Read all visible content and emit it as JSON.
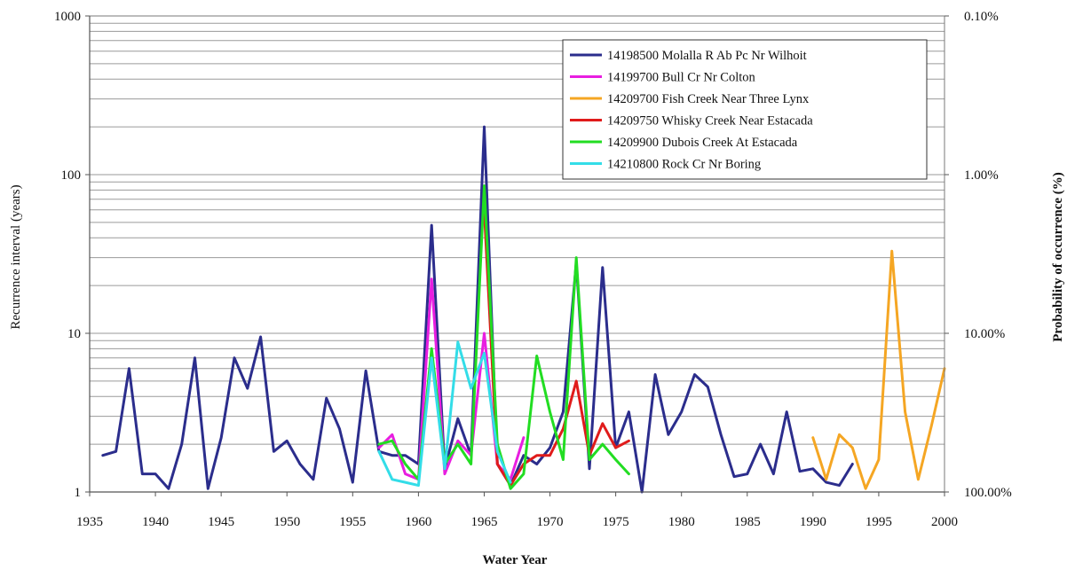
{
  "chart_data": {
    "type": "line",
    "xlabel": "Water Year",
    "ylabel": "Recurrence interval (years)",
    "ylabel_right": "Probability of occurrence (%)",
    "xlim": [
      1935,
      2000
    ],
    "ylim": [
      1,
      1000
    ],
    "yscale": "log",
    "x_ticks": [
      "1935",
      "1940",
      "1945",
      "1950",
      "1955",
      "1960",
      "1965",
      "1970",
      "1975",
      "1980",
      "1985",
      "1990",
      "1995",
      "2000"
    ],
    "y_ticks": [
      "1",
      "10",
      "100",
      "1000"
    ],
    "y2_ticks": [
      "100.00%",
      "10.00%",
      "1.00%",
      "0.10%"
    ],
    "grid": "horizontal log gridlines",
    "legend_position": "top-right",
    "series": [
      {
        "name": "14198500 Molalla R Ab Pc Nr Wilhoit",
        "color": "#2b2d8c",
        "x": [
          1936,
          1937,
          1938,
          1939,
          1940,
          1941,
          1942,
          1943,
          1944,
          1945,
          1946,
          1947,
          1948,
          1949,
          1950,
          1951,
          1952,
          1953,
          1954,
          1955,
          1956,
          1957,
          1958,
          1959,
          1960,
          1961,
          1962,
          1963,
          1964,
          1965,
          1966,
          1967,
          1968,
          1969,
          1970,
          1971,
          1972,
          1973,
          1974,
          1975,
          1976,
          1977,
          1978,
          1979,
          1980,
          1981,
          1982,
          1983,
          1984,
          1985,
          1986,
          1987,
          1988,
          1989,
          1990,
          1991,
          1992,
          1993
        ],
        "y": [
          1.7,
          1.8,
          6,
          1.3,
          1.3,
          1.05,
          2,
          7,
          1.05,
          2.2,
          7,
          4.5,
          9.5,
          1.8,
          2.1,
          1.5,
          1.2,
          3.9,
          2.5,
          1.15,
          5.8,
          1.8,
          1.7,
          1.7,
          1.5,
          48,
          1.4,
          2.9,
          1.7,
          200,
          1.5,
          1.1,
          1.7,
          1.5,
          1.9,
          3.2,
          28,
          1.4,
          26,
          1.9,
          3.2,
          1.0,
          5.5,
          2.3,
          3.2,
          5.5,
          4.6,
          2.3,
          1.25,
          1.3,
          2,
          1.3,
          3.2,
          1.35,
          1.4,
          1.15,
          1.1,
          1.5
        ]
      },
      {
        "name": "14199700 Bull Cr Nr Colton",
        "color": "#e81ee0",
        "x": [
          1957,
          1958,
          1959,
          1960,
          1961,
          1962,
          1963,
          1964,
          1965,
          1966,
          1967,
          1968
        ],
        "y": [
          1.9,
          2.3,
          1.3,
          1.2,
          22,
          1.3,
          2.1,
          1.7,
          10,
          1.5,
          1.2,
          2.2
        ]
      },
      {
        "name": "14209700 Fish Creek Near Three Lynx",
        "color": "#f5a623",
        "x": [
          1990,
          1991,
          1992,
          1993,
          1994,
          1995,
          1996,
          1997,
          1998,
          1999,
          2000
        ],
        "y": [
          2.2,
          1.2,
          2.3,
          1.9,
          1.05,
          1.6,
          33,
          3.2,
          1.2,
          2.6,
          6
        ]
      },
      {
        "name": "14209750 Whisky Creek Near Estacada",
        "color": "#e01b1b",
        "x": [
          1965,
          1966,
          1967,
          1968,
          1969,
          1970,
          1971,
          1972,
          1973,
          1974,
          1975,
          1976
        ],
        "y": [
          60,
          1.5,
          1.1,
          1.5,
          1.7,
          1.7,
          2.5,
          5,
          1.7,
          2.7,
          1.9,
          2.1
        ]
      },
      {
        "name": "14209900 Dubois Creek At Estacada",
        "color": "#22dd22",
        "x": [
          1957,
          1958,
          1959,
          1960,
          1961,
          1962,
          1963,
          1964,
          1965,
          1966,
          1967,
          1968,
          1969,
          1970,
          1971,
          1972,
          1973,
          1974,
          1975,
          1976
        ],
        "y": [
          2,
          2.1,
          1.5,
          1.2,
          8,
          1.5,
          2,
          1.5,
          85,
          2,
          1.05,
          1.3,
          7.2,
          3.2,
          1.6,
          30,
          1.6,
          2,
          1.6,
          1.3
        ]
      },
      {
        "name": "14210800 Rock Cr Nr Boring",
        "color": "#33dde8",
        "x": [
          1957,
          1958,
          1959,
          1960,
          1961,
          1962,
          1963,
          1964,
          1965,
          1966,
          1967
        ],
        "y": [
          1.8,
          1.2,
          1.15,
          1.1,
          7,
          1.4,
          8.8,
          4.5,
          7.5,
          1.8,
          1.15
        ]
      }
    ]
  }
}
